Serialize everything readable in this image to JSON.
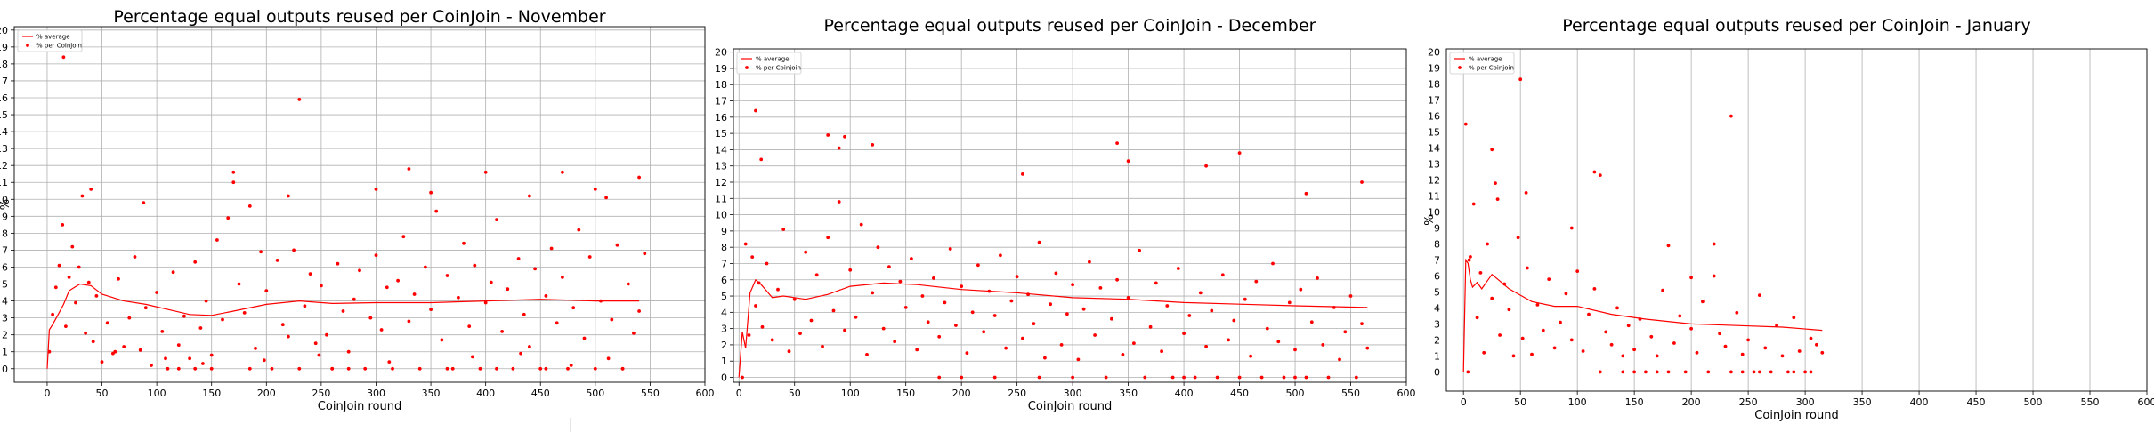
{
  "chart_data": [
    {
      "type": "scatter",
      "title": "Percentage equal outputs reused per CoinJoin - November",
      "xlabel": "CoinJoin round",
      "ylabel": "%",
      "xlim": [
        -30,
        600
      ],
      "ylim": [
        -0.8,
        20.2
      ],
      "xticks": [
        0,
        50,
        100,
        150,
        200,
        250,
        300,
        350,
        400,
        450,
        500,
        550,
        600
      ],
      "yticks": [
        0,
        1,
        2,
        3,
        4,
        5,
        6,
        7,
        8,
        9,
        10,
        11,
        12,
        13,
        14,
        15,
        16,
        17,
        18,
        19,
        20
      ],
      "grid": true,
      "legend": {
        "position": "top-left",
        "entries": [
          "% average",
          "% per Coinjoin"
        ]
      },
      "series": [
        {
          "name": "% average",
          "kind": "line",
          "x": [
            0,
            2,
            5,
            10,
            15,
            20,
            25,
            30,
            40,
            50,
            70,
            90,
            110,
            130,
            150,
            170,
            200,
            230,
            260,
            300,
            350,
            400,
            450,
            500,
            540
          ],
          "y": [
            0,
            2.3,
            2.6,
            3.2,
            3.8,
            4.6,
            4.8,
            5.0,
            4.9,
            4.4,
            4.0,
            3.8,
            3.5,
            3.2,
            3.15,
            3.4,
            3.8,
            4.0,
            3.85,
            3.9,
            3.9,
            4.0,
            4.1,
            4.0,
            4.0
          ]
        },
        {
          "name": "% per Coinjoin",
          "kind": "scatter",
          "x": [
            2,
            5,
            8,
            11,
            14,
            17,
            20,
            23,
            26,
            29,
            32,
            35,
            38,
            42,
            45,
            50,
            55,
            60,
            65,
            70,
            75,
            80,
            85,
            90,
            95,
            100,
            105,
            110,
            115,
            120,
            125,
            130,
            135,
            140,
            145,
            150,
            155,
            160,
            165,
            170,
            175,
            180,
            185,
            190,
            195,
            200,
            205,
            210,
            215,
            220,
            225,
            230,
            235,
            240,
            245,
            250,
            255,
            260,
            265,
            270,
            275,
            280,
            285,
            290,
            295,
            300,
            305,
            310,
            315,
            320,
            325,
            330,
            335,
            340,
            345,
            350,
            355,
            360,
            365,
            370,
            375,
            380,
            385,
            390,
            395,
            400,
            405,
            410,
            415,
            420,
            425,
            430,
            435,
            440,
            445,
            450,
            455,
            460,
            465,
            470,
            475,
            480,
            485,
            490,
            495,
            500,
            505,
            510,
            515,
            520,
            525,
            530,
            535,
            540,
            545,
            15,
            230,
            40,
            220,
            330,
            300,
            400,
            470,
            540,
            88,
            170,
            350,
            440,
            500,
            260,
            410,
            120,
            135,
            150,
            185,
            275,
            365,
            455,
            525,
            62,
            108,
            142,
            198,
            248,
            312,
            388,
            432,
            478,
            512
          ],
          "y": [
            1.0,
            3.2,
            4.8,
            6.1,
            8.5,
            2.5,
            5.4,
            7.2,
            3.9,
            6.0,
            10.2,
            2.1,
            5.1,
            1.6,
            4.3,
            0.4,
            2.7,
            0.9,
            5.3,
            1.3,
            3.0,
            6.6,
            1.1,
            3.6,
            0.2,
            4.5,
            2.2,
            0.0,
            5.7,
            1.4,
            3.1,
            0.6,
            6.3,
            2.4,
            4.0,
            0.8,
            7.6,
            2.9,
            8.9,
            11.6,
            5.0,
            3.3,
            9.6,
            1.2,
            6.9,
            4.6,
            0.0,
            6.4,
            2.6,
            1.9,
            7.0,
            0.0,
            3.7,
            5.6,
            1.5,
            4.9,
            2.0,
            0.0,
            6.2,
            3.4,
            1.0,
            4.1,
            5.8,
            0.0,
            3.0,
            6.7,
            2.3,
            4.8,
            0.0,
            5.2,
            7.8,
            2.8,
            4.4,
            0.0,
            6.0,
            3.5,
            9.3,
            1.7,
            5.5,
            0.0,
            4.2,
            7.4,
            2.5,
            6.1,
            0.0,
            3.9,
            5.1,
            8.8,
            2.2,
            4.7,
            0.0,
            6.5,
            3.2,
            1.3,
            5.9,
            0.0,
            4.3,
            7.1,
            2.7,
            5.4,
            0.0,
            3.6,
            8.2,
            1.8,
            6.6,
            0.0,
            4.0,
            10.1,
            2.9,
            7.3,
            0.0,
            5.0,
            2.1,
            3.4,
            6.8,
            18.4,
            15.9,
            10.6,
            10.2,
            11.8,
            10.6,
            11.6,
            11.6,
            11.3,
            9.8,
            11.0,
            10.4,
            10.2,
            10.6,
            0.0,
            0.0,
            0.0,
            0.0,
            0.0,
            0.0,
            0.0,
            0.0,
            0.0,
            0.0,
            1.0,
            0.6,
            0.3,
            0.5,
            0.8,
            0.4,
            0.7,
            0.9,
            0.2,
            0.6
          ]
        }
      ]
    },
    {
      "type": "scatter",
      "title": "Percentage equal outputs reused per CoinJoin - December",
      "xlabel": "CoinJoin round",
      "ylabel": "",
      "xlim": [
        -5,
        600
      ],
      "ylim": [
        -0.3,
        20.2
      ],
      "xticks": [
        0,
        50,
        100,
        150,
        200,
        250,
        300,
        350,
        400,
        450,
        500,
        550,
        600
      ],
      "yticks": [
        0,
        1,
        2,
        3,
        4,
        5,
        6,
        7,
        8,
        9,
        10,
        11,
        12,
        13,
        14,
        15,
        16,
        17,
        18,
        19,
        20
      ],
      "grid": true,
      "legend": {
        "position": "top-left",
        "entries": [
          "% average",
          "% per Coinjoin"
        ]
      },
      "series": [
        {
          "name": "% average",
          "kind": "line",
          "x": [
            0,
            3,
            6,
            10,
            15,
            20,
            30,
            40,
            60,
            80,
            100,
            130,
            160,
            200,
            250,
            300,
            350,
            400,
            450,
            500,
            565
          ],
          "y": [
            0,
            2.8,
            1.8,
            5.2,
            6.0,
            5.7,
            4.9,
            5.0,
            4.8,
            5.1,
            5.6,
            5.8,
            5.7,
            5.4,
            5.2,
            4.9,
            4.8,
            4.6,
            4.5,
            4.4,
            4.3
          ]
        },
        {
          "name": "% per Coinjoin",
          "kind": "scatter",
          "x": [
            3,
            6,
            9,
            12,
            15,
            18,
            21,
            25,
            30,
            35,
            40,
            45,
            50,
            55,
            60,
            65,
            70,
            75,
            80,
            85,
            90,
            95,
            100,
            105,
            110,
            115,
            120,
            125,
            130,
            135,
            140,
            145,
            150,
            155,
            160,
            165,
            170,
            175,
            180,
            185,
            190,
            195,
            200,
            205,
            210,
            215,
            220,
            225,
            230,
            235,
            240,
            245,
            250,
            255,
            260,
            265,
            270,
            275,
            280,
            285,
            290,
            295,
            300,
            305,
            310,
            315,
            320,
            325,
            330,
            335,
            340,
            345,
            350,
            355,
            360,
            365,
            370,
            375,
            380,
            385,
            390,
            395,
            400,
            405,
            410,
            415,
            420,
            425,
            430,
            435,
            440,
            445,
            450,
            455,
            460,
            465,
            470,
            475,
            480,
            485,
            490,
            495,
            500,
            505,
            510,
            515,
            520,
            525,
            530,
            535,
            540,
            545,
            550,
            555,
            560,
            565,
            15,
            20,
            80,
            95,
            120,
            255,
            340,
            350,
            420,
            450,
            510,
            560,
            90,
            200,
            300,
            400,
            500,
            270,
            230,
            180
          ],
          "y": [
            0.0,
            8.2,
            2.6,
            7.4,
            4.4,
            5.8,
            3.1,
            7.0,
            2.3,
            5.4,
            9.1,
            1.6,
            4.8,
            2.7,
            7.7,
            3.5,
            6.3,
            1.9,
            8.6,
            4.1,
            10.8,
            2.9,
            6.6,
            3.7,
            9.4,
            1.4,
            5.2,
            8.0,
            3.0,
            6.8,
            2.2,
            5.9,
            4.3,
            7.3,
            1.7,
            5.0,
            3.4,
            6.1,
            2.5,
            4.6,
            7.9,
            3.2,
            5.6,
            1.5,
            4.0,
            6.9,
            2.8,
            5.3,
            3.8,
            7.5,
            1.8,
            4.7,
            6.2,
            2.4,
            5.1,
            3.3,
            8.3,
            1.2,
            4.5,
            6.4,
            2.0,
            3.9,
            5.7,
            1.1,
            4.2,
            7.1,
            2.6,
            5.5,
            0.0,
            3.6,
            6.0,
            1.4,
            4.9,
            2.1,
            7.8,
            0.0,
            3.1,
            5.8,
            1.6,
            4.4,
            0.0,
            6.7,
            2.7,
            3.8,
            0.0,
            5.2,
            1.9,
            4.1,
            0.0,
            6.3,
            2.3,
            3.5,
            0.0,
            4.8,
            1.3,
            5.9,
            0.0,
            3.0,
            7.0,
            2.2,
            0.0,
            4.6,
            1.7,
            5.4,
            0.0,
            3.4,
            6.1,
            2.0,
            0.0,
            4.3,
            1.1,
            2.8,
            5.0,
            0.0,
            3.3,
            1.8,
            16.4,
            13.4,
            14.9,
            14.8,
            14.3,
            12.5,
            14.4,
            13.3,
            13.0,
            13.8,
            11.3,
            12.0,
            14.1,
            0.0,
            0.0,
            0.0,
            0.0,
            0.0,
            0.0,
            0.0
          ]
        }
      ]
    },
    {
      "type": "scatter",
      "title": "Percentage equal outputs reused per CoinJoin - January",
      "xlabel": "CoinJoin round",
      "ylabel": "%",
      "xlim": [
        -15,
        600
      ],
      "ylim": [
        -1.2,
        20.2
      ],
      "xticks": [
        0,
        50,
        100,
        150,
        200,
        250,
        300,
        350,
        400,
        450,
        500,
        550,
        600
      ],
      "yticks": [
        0,
        1,
        2,
        3,
        4,
        5,
        6,
        7,
        8,
        9,
        10,
        11,
        12,
        13,
        14,
        15,
        16,
        17,
        18,
        19,
        20
      ],
      "grid": true,
      "legend": {
        "position": "top-left",
        "entries": [
          "% average",
          "% per Coinjoin"
        ]
      },
      "series": [
        {
          "name": "% average",
          "kind": "line",
          "x": [
            0,
            2,
            4,
            6,
            8,
            12,
            16,
            20,
            25,
            30,
            40,
            50,
            60,
            80,
            100,
            130,
            160,
            200,
            240,
            280,
            315
          ],
          "y": [
            0,
            7.0,
            6.8,
            5.8,
            5.3,
            5.6,
            5.2,
            5.6,
            6.1,
            5.8,
            5.2,
            4.8,
            4.4,
            4.1,
            4.1,
            3.6,
            3.3,
            3.0,
            2.9,
            2.8,
            2.6
          ]
        },
        {
          "name": "% per Coinjoin",
          "kind": "scatter",
          "x": [
            2,
            4,
            6,
            9,
            12,
            15,
            18,
            21,
            25,
            28,
            32,
            36,
            40,
            44,
            48,
            52,
            56,
            60,
            65,
            70,
            75,
            80,
            85,
            90,
            95,
            100,
            105,
            110,
            115,
            120,
            125,
            130,
            135,
            140,
            145,
            150,
            155,
            160,
            165,
            170,
            175,
            180,
            185,
            190,
            195,
            200,
            205,
            210,
            215,
            220,
            225,
            230,
            235,
            240,
            245,
            250,
            255,
            260,
            265,
            270,
            275,
            280,
            285,
            290,
            295,
            300,
            305,
            310,
            315,
            5,
            25,
            50,
            55,
            115,
            120,
            235,
            30,
            95,
            180,
            220,
            140,
            260,
            305,
            200,
            150,
            170,
            245,
            290
          ],
          "y": [
            15.5,
            0.0,
            7.2,
            10.5,
            3.4,
            6.2,
            1.2,
            8.0,
            4.6,
            11.8,
            2.3,
            5.5,
            3.9,
            1.0,
            8.4,
            2.1,
            6.5,
            1.1,
            4.2,
            2.6,
            5.8,
            1.5,
            3.1,
            4.9,
            2.0,
            6.3,
            1.3,
            3.6,
            5.2,
            0.0,
            2.5,
            1.7,
            4.0,
            0.0,
            2.9,
            1.4,
            3.3,
            0.0,
            2.2,
            1.0,
            5.1,
            0.0,
            1.8,
            3.5,
            0.0,
            2.7,
            1.2,
            4.4,
            0.0,
            6.0,
            2.4,
            1.6,
            0.0,
            3.7,
            1.1,
            2.0,
            0.0,
            4.8,
            1.5,
            0.0,
            2.9,
            1.0,
            0.0,
            3.4,
            1.3,
            0.0,
            2.1,
            1.7,
            1.2,
            7.0,
            13.9,
            18.3,
            11.2,
            12.5,
            12.3,
            16.0,
            10.8,
            9.0,
            7.9,
            8.0,
            1.0,
            0.0,
            0.0,
            5.9,
            0.0,
            0.0,
            0.0,
            0.0
          ]
        }
      ]
    }
  ]
}
